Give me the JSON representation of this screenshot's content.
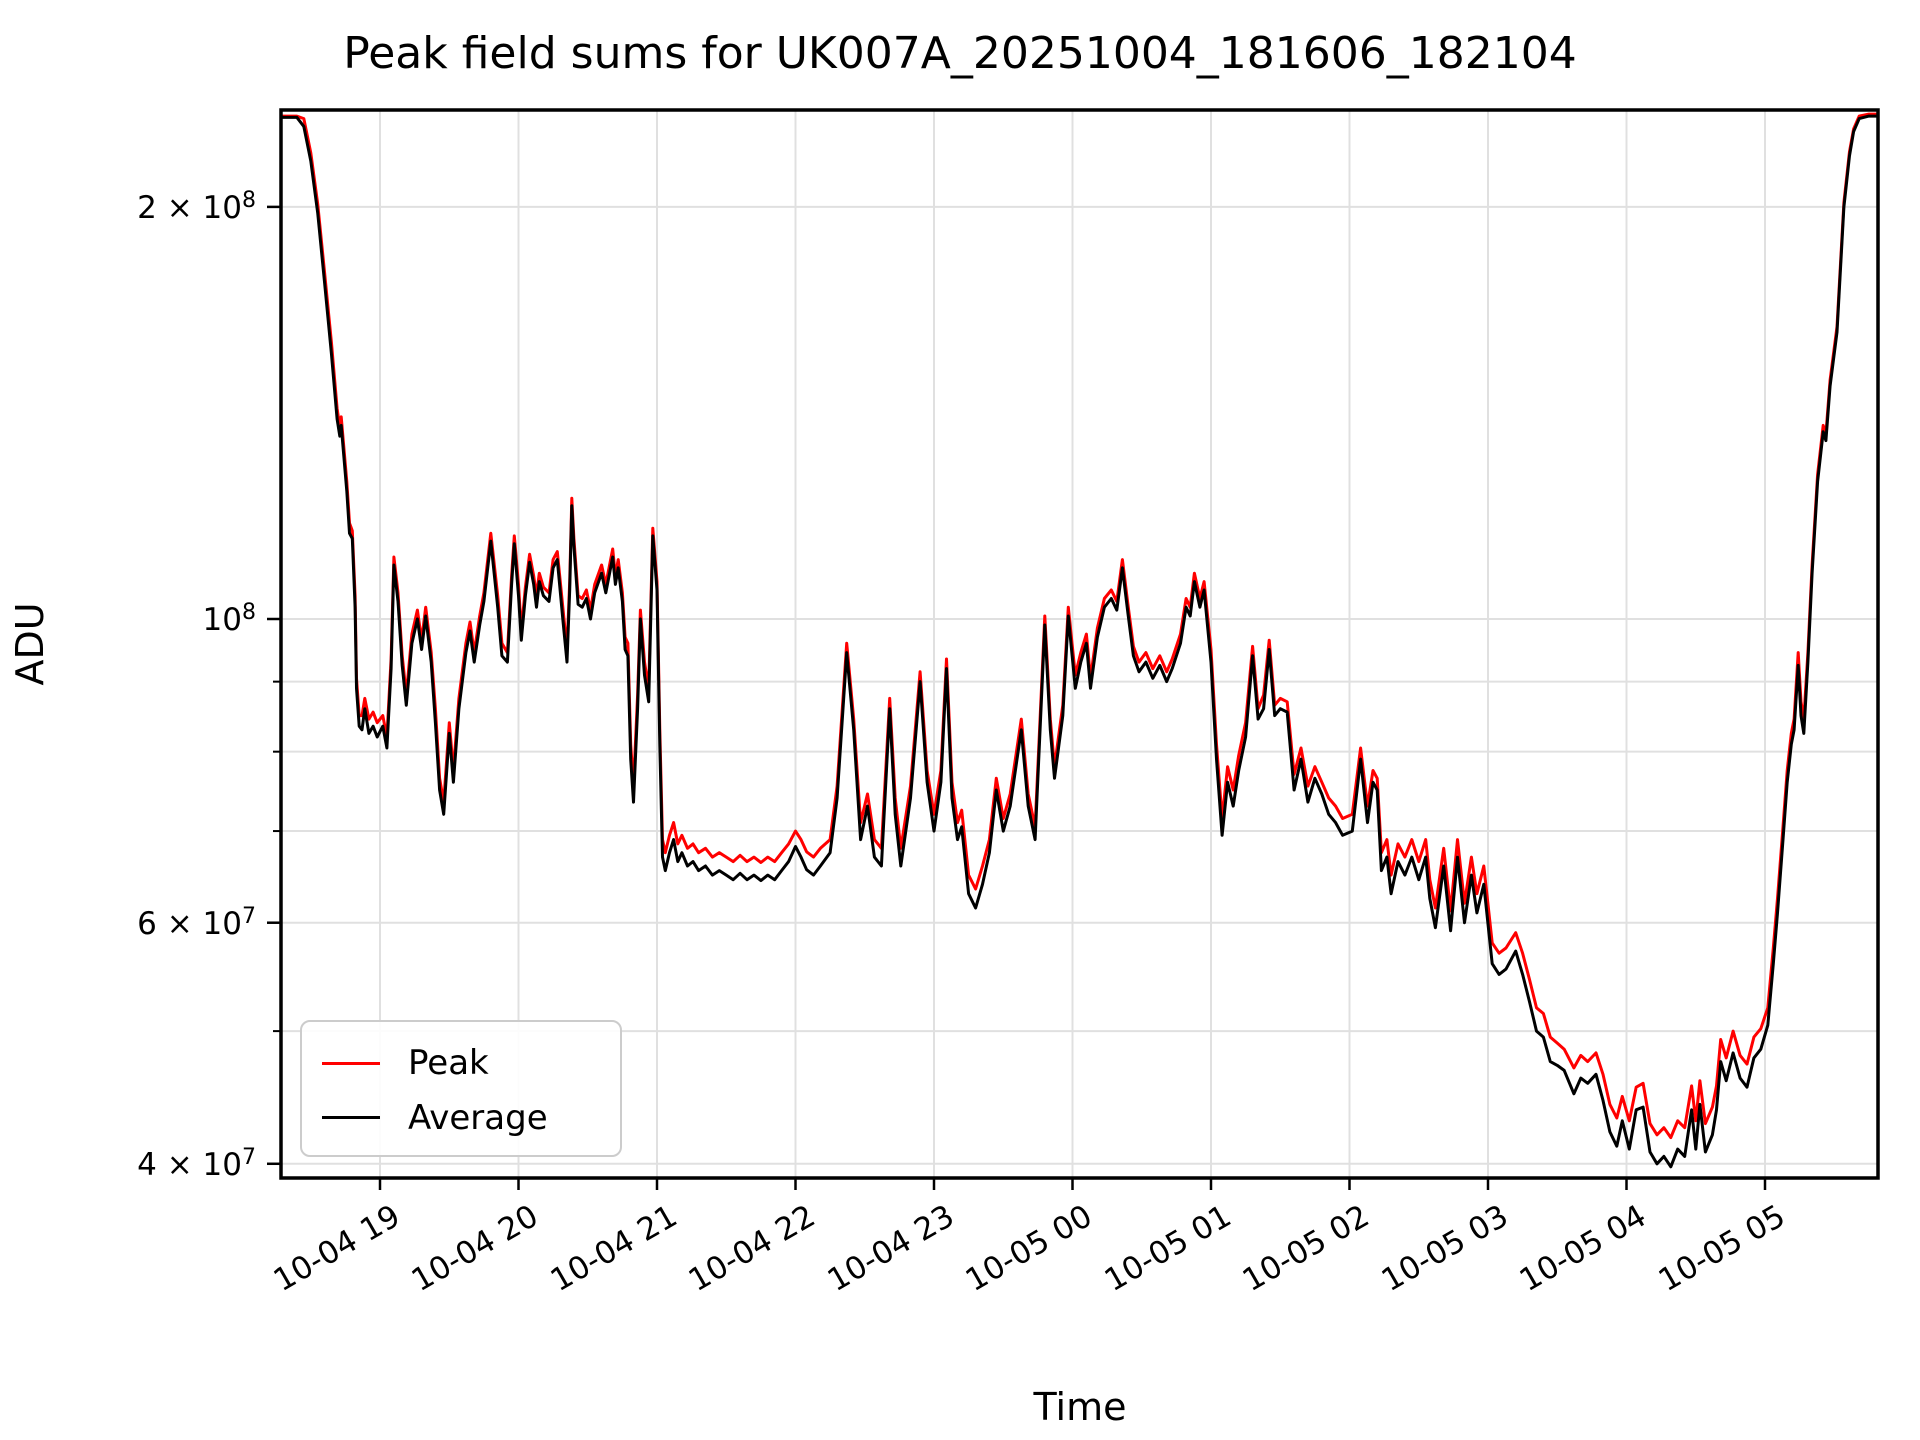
{
  "title": "Peak field sums for UK007A_20251004_181606_182104",
  "axes": {
    "xlabel": "Time",
    "ylabel": "ADU",
    "yscale": "log",
    "grid": "both",
    "background": "#ffffff",
    "grid_color": "#e0e0e0",
    "spine_color": "#000000"
  },
  "legend": {
    "position": "lower-left",
    "items": [
      {
        "label": "Peak",
        "color": "#ff0000"
      },
      {
        "label": "Average",
        "color": "#000000"
      }
    ]
  },
  "chart_data": {
    "type": "line",
    "title": "Peak field sums for UK007A_20251004_181606_182104",
    "xlabel": "Time",
    "ylabel": "ADU",
    "yscale": "log",
    "values_unit": "1e7 ADU",
    "x_unit": "decimal hours after 2025-10-04 00:00 (24+ = Oct 5)",
    "xlim": [
      18.285,
      29.815
    ],
    "ylim_1e7": [
      3.85,
      23.6
    ],
    "xticks": [
      {
        "t": 19,
        "label": "10-04 19"
      },
      {
        "t": 20,
        "label": "10-04 20"
      },
      {
        "t": 21,
        "label": "10-04 21"
      },
      {
        "t": 22,
        "label": "10-04 22"
      },
      {
        "t": 23,
        "label": "10-04 23"
      },
      {
        "t": 24,
        "label": "10-05 00"
      },
      {
        "t": 25,
        "label": "10-05 01"
      },
      {
        "t": 26,
        "label": "10-05 02"
      },
      {
        "t": 27,
        "label": "10-05 03"
      },
      {
        "t": 28,
        "label": "10-05 04"
      },
      {
        "t": 29,
        "label": "10-05 05"
      }
    ],
    "yticks_major": [
      {
        "v": 20,
        "text": "2 × 10",
        "exp": "8"
      },
      {
        "v": 10,
        "text": "10",
        "exp": "8"
      },
      {
        "v": 6,
        "text": "6 × 10",
        "exp": "7"
      },
      {
        "v": 4,
        "text": "4 × 10",
        "exp": "7"
      }
    ],
    "yticks_minor": [
      9,
      8,
      7,
      5
    ],
    "t": [
      18.29,
      18.4,
      18.45,
      18.5,
      18.55,
      18.6,
      18.65,
      18.69,
      18.71,
      18.72,
      18.76,
      18.78,
      18.8,
      18.82,
      18.83,
      18.85,
      18.87,
      18.89,
      18.92,
      18.95,
      18.98,
      19.02,
      19.05,
      19.08,
      19.1,
      19.13,
      19.16,
      19.19,
      19.23,
      19.27,
      19.3,
      19.33,
      19.37,
      19.4,
      19.43,
      19.46,
      19.5,
      19.53,
      19.57,
      19.62,
      19.65,
      19.68,
      19.72,
      19.75,
      19.8,
      19.85,
      19.88,
      19.92,
      19.95,
      19.97,
      20.0,
      20.02,
      20.05,
      20.08,
      20.11,
      20.13,
      20.15,
      20.18,
      20.22,
      20.25,
      20.28,
      20.32,
      20.35,
      20.37,
      20.385,
      20.4,
      20.43,
      20.46,
      20.49,
      20.52,
      20.55,
      20.6,
      20.63,
      20.68,
      20.7,
      20.72,
      20.75,
      20.77,
      20.79,
      20.81,
      20.83,
      20.86,
      20.88,
      20.91,
      20.94,
      20.97,
      21.0,
      21.02,
      21.04,
      21.06,
      21.09,
      21.12,
      21.15,
      21.18,
      21.22,
      21.26,
      21.3,
      21.35,
      21.4,
      21.45,
      21.5,
      21.55,
      21.6,
      21.65,
      21.7,
      21.75,
      21.8,
      21.85,
      21.9,
      21.95,
      22.0,
      22.04,
      22.08,
      22.13,
      22.18,
      22.25,
      22.3,
      22.37,
      22.42,
      22.47,
      22.52,
      22.57,
      22.62,
      22.68,
      22.72,
      22.76,
      22.83,
      22.9,
      22.95,
      23.0,
      23.05,
      23.09,
      23.13,
      23.17,
      23.2,
      23.25,
      23.3,
      23.35,
      23.4,
      23.45,
      23.5,
      23.55,
      23.63,
      23.68,
      23.73,
      23.8,
      23.84,
      23.87,
      23.93,
      23.97,
      24.02,
      24.06,
      24.1,
      24.13,
      24.18,
      24.23,
      24.28,
      24.32,
      24.36,
      24.4,
      24.44,
      24.48,
      24.53,
      24.58,
      24.63,
      24.68,
      24.72,
      24.78,
      24.82,
      24.85,
      24.88,
      24.92,
      24.95,
      25.0,
      25.04,
      25.08,
      25.12,
      25.16,
      25.2,
      25.25,
      25.3,
      25.34,
      25.38,
      25.42,
      25.46,
      25.5,
      25.55,
      25.6,
      25.65,
      25.7,
      25.75,
      25.8,
      25.85,
      25.9,
      25.95,
      26.02,
      26.08,
      26.13,
      26.17,
      26.2,
      26.23,
      26.27,
      26.3,
      26.35,
      26.4,
      26.45,
      26.5,
      26.55,
      26.58,
      26.62,
      26.68,
      26.73,
      26.78,
      26.83,
      26.88,
      26.92,
      26.97,
      27.03,
      27.08,
      27.13,
      27.2,
      27.25,
      27.3,
      27.35,
      27.4,
      27.45,
      27.5,
      27.55,
      27.62,
      27.67,
      27.72,
      27.78,
      27.83,
      27.88,
      27.93,
      27.97,
      28.02,
      28.07,
      28.12,
      28.17,
      28.22,
      28.27,
      28.32,
      28.37,
      28.42,
      28.47,
      28.5,
      28.53,
      28.57,
      28.62,
      28.65,
      28.68,
      28.72,
      28.77,
      28.82,
      28.87,
      28.92,
      28.97,
      29.02,
      29.06,
      29.09,
      29.13,
      29.16,
      29.19,
      29.21,
      29.24,
      29.26,
      29.28,
      29.31,
      29.34,
      29.38,
      29.42,
      29.44,
      29.47,
      29.52,
      29.57,
      29.61,
      29.64,
      29.68,
      29.75,
      29.82
    ],
    "series": [
      {
        "name": "Peak",
        "color": "#ff0000",
        "values_1e7": [
          23.3,
          23.3,
          23.2,
          21.9,
          20.1,
          17.9,
          15.9,
          14.25,
          13.8,
          14.05,
          12.6,
          11.75,
          11.6,
          10.4,
          9.05,
          8.5,
          8.5,
          8.75,
          8.45,
          8.55,
          8.4,
          8.5,
          8.2,
          9.35,
          11.1,
          10.45,
          9.4,
          8.8,
          9.75,
          10.15,
          9.65,
          10.2,
          9.45,
          8.6,
          7.65,
          7.35,
          8.4,
          7.75,
          8.75,
          9.6,
          9.95,
          9.45,
          10.05,
          10.45,
          11.55,
          10.4,
          9.6,
          9.45,
          10.75,
          11.5,
          10.6,
          9.8,
          10.55,
          11.15,
          10.75,
          10.4,
          10.8,
          10.55,
          10.45,
          11.05,
          11.2,
          10.2,
          9.5,
          10.65,
          12.25,
          11.45,
          10.4,
          10.35,
          10.5,
          10.15,
          10.6,
          10.95,
          10.6,
          11.25,
          10.75,
          11.05,
          10.45,
          9.7,
          9.6,
          8.1,
          7.55,
          8.8,
          10.15,
          9.3,
          8.9,
          11.65,
          10.65,
          8.3,
          6.9,
          6.75,
          6.95,
          7.1,
          6.85,
          6.95,
          6.8,
          6.85,
          6.75,
          6.8,
          6.7,
          6.75,
          6.7,
          6.65,
          6.72,
          6.65,
          6.7,
          6.64,
          6.7,
          6.65,
          6.75,
          6.85,
          7.0,
          6.9,
          6.76,
          6.7,
          6.8,
          6.9,
          7.55,
          9.6,
          8.45,
          7.1,
          7.45,
          6.9,
          6.8,
          8.75,
          7.4,
          6.8,
          7.55,
          9.15,
          7.75,
          7.2,
          7.75,
          9.35,
          7.6,
          7.1,
          7.25,
          6.5,
          6.35,
          6.6,
          6.9,
          7.65,
          7.15,
          7.45,
          8.45,
          7.45,
          7.05,
          10.05,
          8.45,
          7.8,
          8.65,
          10.2,
          9.1,
          9.45,
          9.75,
          9.05,
          9.85,
          10.35,
          10.5,
          10.3,
          11.05,
          10.25,
          9.55,
          9.3,
          9.45,
          9.2,
          9.4,
          9.15,
          9.35,
          9.75,
          10.35,
          10.2,
          10.8,
          10.35,
          10.65,
          9.5,
          8.1,
          7.15,
          7.8,
          7.5,
          7.95,
          8.4,
          9.55,
          8.6,
          8.8,
          9.65,
          8.65,
          8.75,
          8.7,
          7.7,
          8.05,
          7.55,
          7.8,
          7.6,
          7.4,
          7.3,
          7.15,
          7.2,
          8.05,
          7.3,
          7.75,
          7.65,
          6.75,
          6.9,
          6.5,
          6.85,
          6.7,
          6.9,
          6.65,
          6.9,
          6.45,
          6.15,
          6.8,
          6.12,
          6.9,
          6.2,
          6.7,
          6.3,
          6.6,
          5.8,
          5.7,
          5.75,
          5.9,
          5.7,
          5.45,
          5.2,
          5.15,
          4.95,
          4.9,
          4.85,
          4.7,
          4.8,
          4.75,
          4.82,
          4.65,
          4.42,
          4.32,
          4.48,
          4.3,
          4.55,
          4.58,
          4.28,
          4.2,
          4.25,
          4.18,
          4.3,
          4.25,
          4.56,
          4.3,
          4.6,
          4.28,
          4.4,
          4.56,
          4.93,
          4.78,
          5.0,
          4.8,
          4.73,
          4.95,
          5.02,
          5.2,
          5.75,
          6.25,
          7.05,
          7.75,
          8.25,
          8.45,
          9.45,
          8.7,
          8.45,
          9.45,
          10.95,
          12.75,
          13.85,
          13.65,
          14.95,
          16.35,
          20.15,
          21.95,
          22.8,
          23.3,
          23.38,
          23.38
        ]
      },
      {
        "name": "Average",
        "color": "#000000",
        "values_1e7": [
          23.25,
          23.25,
          22.9,
          21.6,
          19.8,
          17.6,
          15.6,
          14.0,
          13.6,
          13.85,
          12.4,
          11.55,
          11.45,
          10.2,
          8.9,
          8.35,
          8.3,
          8.6,
          8.25,
          8.35,
          8.2,
          8.35,
          8.05,
          9.2,
          10.95,
          10.3,
          9.25,
          8.65,
          9.6,
          10.0,
          9.5,
          10.05,
          9.3,
          8.4,
          7.5,
          7.2,
          8.25,
          7.6,
          8.6,
          9.45,
          9.8,
          9.3,
          9.9,
          10.3,
          11.4,
          10.2,
          9.4,
          9.3,
          10.6,
          11.35,
          10.4,
          9.65,
          10.4,
          11.0,
          10.6,
          10.2,
          10.65,
          10.4,
          10.3,
          10.9,
          11.05,
          10.0,
          9.3,
          10.5,
          12.1,
          11.3,
          10.25,
          10.2,
          10.35,
          10.0,
          10.45,
          10.8,
          10.45,
          11.1,
          10.6,
          10.9,
          10.3,
          9.5,
          9.4,
          7.9,
          7.35,
          8.6,
          10.0,
          9.1,
          8.7,
          11.5,
          10.5,
          8.1,
          6.7,
          6.55,
          6.75,
          6.9,
          6.65,
          6.75,
          6.6,
          6.65,
          6.55,
          6.6,
          6.5,
          6.55,
          6.5,
          6.45,
          6.52,
          6.45,
          6.5,
          6.44,
          6.5,
          6.45,
          6.55,
          6.65,
          6.82,
          6.7,
          6.56,
          6.5,
          6.6,
          6.75,
          7.4,
          9.45,
          8.3,
          6.9,
          7.3,
          6.7,
          6.6,
          8.6,
          7.2,
          6.6,
          7.4,
          9.0,
          7.6,
          7.0,
          7.6,
          9.2,
          7.4,
          6.9,
          7.05,
          6.3,
          6.15,
          6.4,
          6.75,
          7.5,
          7.0,
          7.3,
          8.3,
          7.3,
          6.9,
          9.9,
          8.3,
          7.65,
          8.5,
          10.05,
          8.9,
          9.3,
          9.6,
          8.9,
          9.7,
          10.2,
          10.35,
          10.15,
          10.9,
          10.1,
          9.4,
          9.15,
          9.3,
          9.05,
          9.25,
          9.0,
          9.2,
          9.6,
          10.2,
          10.05,
          10.65,
          10.2,
          10.5,
          9.3,
          7.9,
          6.95,
          7.6,
          7.3,
          7.75,
          8.2,
          9.4,
          8.45,
          8.6,
          9.5,
          8.5,
          8.6,
          8.55,
          7.5,
          7.9,
          7.35,
          7.65,
          7.45,
          7.2,
          7.1,
          6.95,
          7.0,
          7.9,
          7.1,
          7.6,
          7.5,
          6.55,
          6.7,
          6.3,
          6.65,
          6.5,
          6.7,
          6.45,
          6.7,
          6.25,
          5.95,
          6.6,
          5.92,
          6.7,
          6.0,
          6.5,
          6.1,
          6.4,
          5.6,
          5.5,
          5.55,
          5.72,
          5.5,
          5.25,
          5.0,
          4.95,
          4.75,
          4.72,
          4.68,
          4.5,
          4.62,
          4.58,
          4.65,
          4.45,
          4.22,
          4.12,
          4.3,
          4.1,
          4.38,
          4.4,
          4.08,
          4.0,
          4.05,
          3.98,
          4.1,
          4.05,
          4.38,
          4.1,
          4.42,
          4.08,
          4.2,
          4.38,
          4.75,
          4.6,
          4.82,
          4.62,
          4.55,
          4.78,
          4.85,
          5.05,
          5.6,
          6.1,
          6.9,
          7.6,
          8.1,
          8.3,
          9.25,
          8.5,
          8.25,
          9.3,
          10.8,
          12.6,
          13.7,
          13.5,
          14.8,
          16.2,
          20.0,
          21.8,
          22.7,
          23.2,
          23.3,
          23.3
        ]
      }
    ]
  }
}
